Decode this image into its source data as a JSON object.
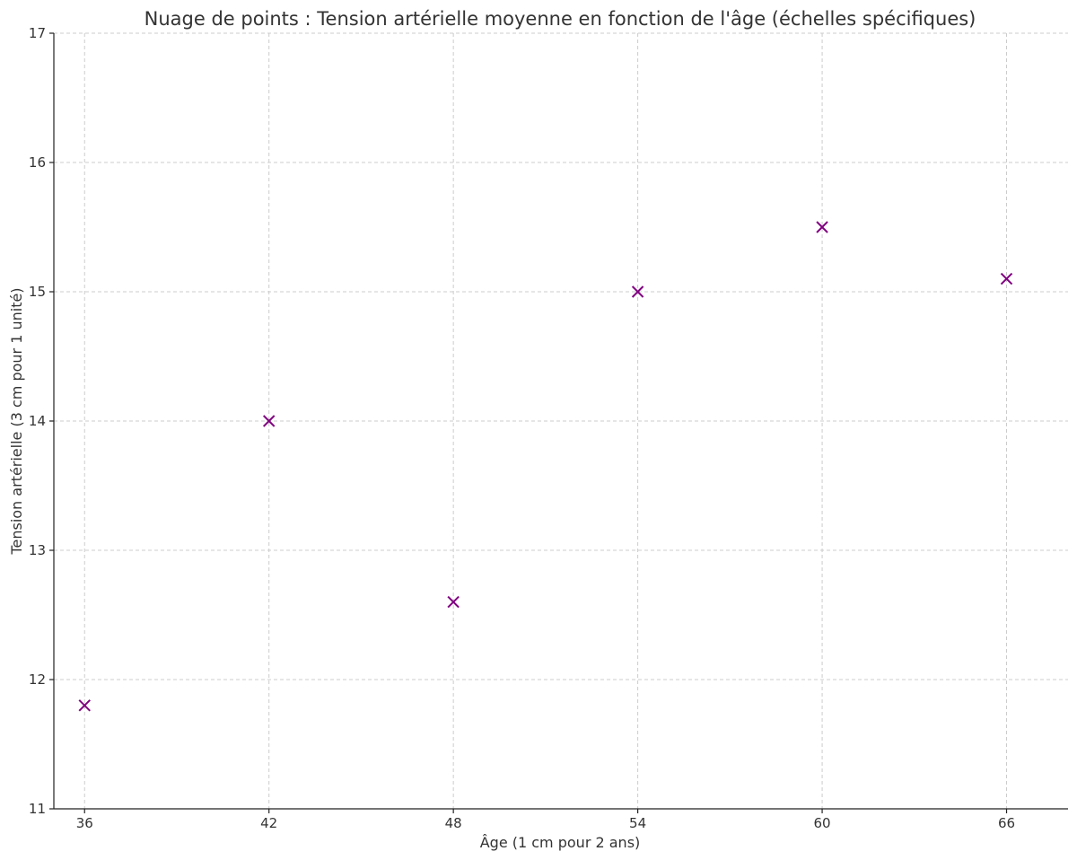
{
  "chart_data": {
    "type": "scatter",
    "title": "Nuage de points : Tension artérielle moyenne en fonction de l'âge (échelles spécifiques)",
    "xlabel": "Âge (1 cm pour 2 ans)",
    "ylabel": "Tension artérielle (3 cm pour 1 unité)",
    "xlim": [
      35,
      68
    ],
    "ylim": [
      11,
      17
    ],
    "xticks": [
      36,
      42,
      48,
      54,
      60,
      66
    ],
    "yticks": [
      11,
      12,
      13,
      14,
      15,
      16,
      17
    ],
    "grid": true,
    "marker": "x",
    "color": "#800080",
    "points": [
      {
        "x": 36,
        "y": 11.8
      },
      {
        "x": 42,
        "y": 14.0
      },
      {
        "x": 48,
        "y": 12.6
      },
      {
        "x": 54,
        "y": 15.0
      },
      {
        "x": 60,
        "y": 15.5
      },
      {
        "x": 66,
        "y": 15.1
      }
    ]
  }
}
